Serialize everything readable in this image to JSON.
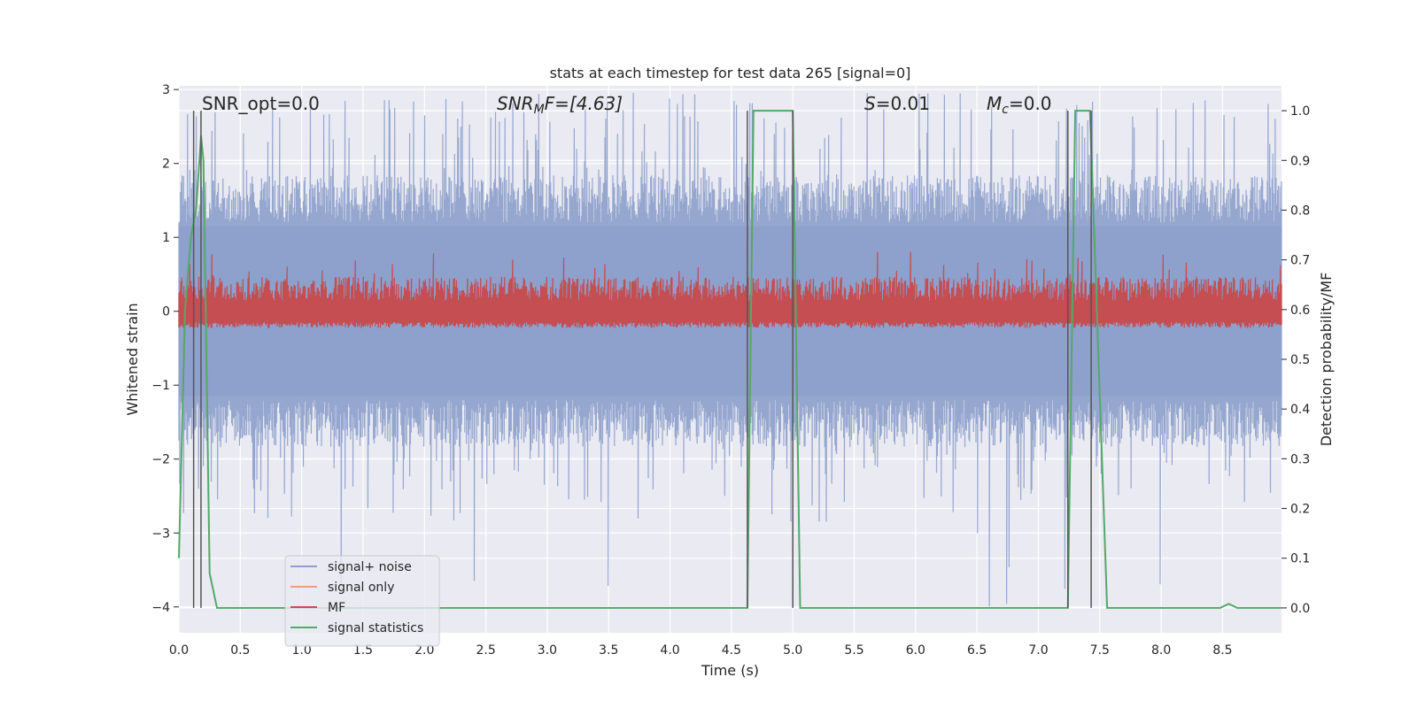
{
  "chart_data": {
    "type": "line",
    "title": "stats at each timestep for test data 265 [signal=0]",
    "xlabel": "Time (s)",
    "ylabel": "Whitened strain",
    "y2label": "Detection probability/MF",
    "xlim": [
      0.0,
      8.98
    ],
    "ylim": [
      -4.35,
      3.05
    ],
    "y2lim": [
      -0.05,
      1.05
    ],
    "grid": true,
    "x_ticks": [
      "0.0",
      "0.5",
      "1.0",
      "1.5",
      "2.0",
      "2.5",
      "3.0",
      "3.5",
      "4.0",
      "4.5",
      "5.0",
      "5.5",
      "6.0",
      "6.5",
      "7.0",
      "7.5",
      "8.0",
      "8.5"
    ],
    "y_ticks": [
      "−4",
      "−3",
      "−2",
      "−1",
      "0",
      "1",
      "2",
      "3"
    ],
    "y2_ticks": [
      "0.0",
      "0.1",
      "0.2",
      "0.3",
      "0.4",
      "0.5",
      "0.6",
      "0.7",
      "0.8",
      "0.9",
      "1.0"
    ],
    "annotations": {
      "snr_opt": "SNR_opt=0.0",
      "snr_mf": "SNRMF=[4.63]",
      "snr_mf_pre": "SNR",
      "snr_mf_sub": "M",
      "snr_mf_post": "F=[4.63]",
      "s_var": "S",
      "s_val": "=0.01",
      "mc_var": "M",
      "mc_sub": "c",
      "mc_val": "=0.0"
    },
    "legend": {
      "position": "lower-left",
      "entries": [
        {
          "label": "signal+ noise",
          "color": "#8da0cb"
        },
        {
          "label": "signal only",
          "color": "#e9a07e"
        },
        {
          "label": "MF",
          "color": "#c44e52"
        },
        {
          "label": "signal statistics",
          "color": "#55a868"
        }
      ]
    },
    "series": [
      {
        "name": "signal+ noise",
        "axis": "left",
        "color": "#8da0cb",
        "description": "whitened noise, dense fill",
        "envelope_positive_typical": 1.6,
        "envelope_negative_typical": -1.6,
        "max": 3.0,
        "min": -4.0
      },
      {
        "name": "MF",
        "axis": "right",
        "color": "#c44e52",
        "center": 0.6,
        "lower": 0.575,
        "upper_typical": 0.66,
        "upper_max": 0.72
      },
      {
        "name": "signal statistics",
        "axis": "right",
        "color": "#55a868",
        "x": [
          0.0,
          0.05,
          0.1,
          0.14,
          0.18,
          0.2,
          0.25,
          0.31,
          4.63,
          4.68,
          5.0,
          5.06,
          7.24,
          7.3,
          7.42,
          7.56,
          8.48,
          8.55,
          8.62,
          8.98
        ],
        "y": [
          0.1,
          0.6,
          0.75,
          0.8,
          0.95,
          0.9,
          0.07,
          0.0,
          0.0,
          1.0,
          1.0,
          0.0,
          0.0,
          1.0,
          1.0,
          0.0,
          0.0,
          0.008,
          0.0,
          0.0
        ]
      }
    ],
    "vertical_lines_x": [
      0.12,
      0.18,
      4.63,
      5.0,
      7.24,
      7.43
    ]
  }
}
